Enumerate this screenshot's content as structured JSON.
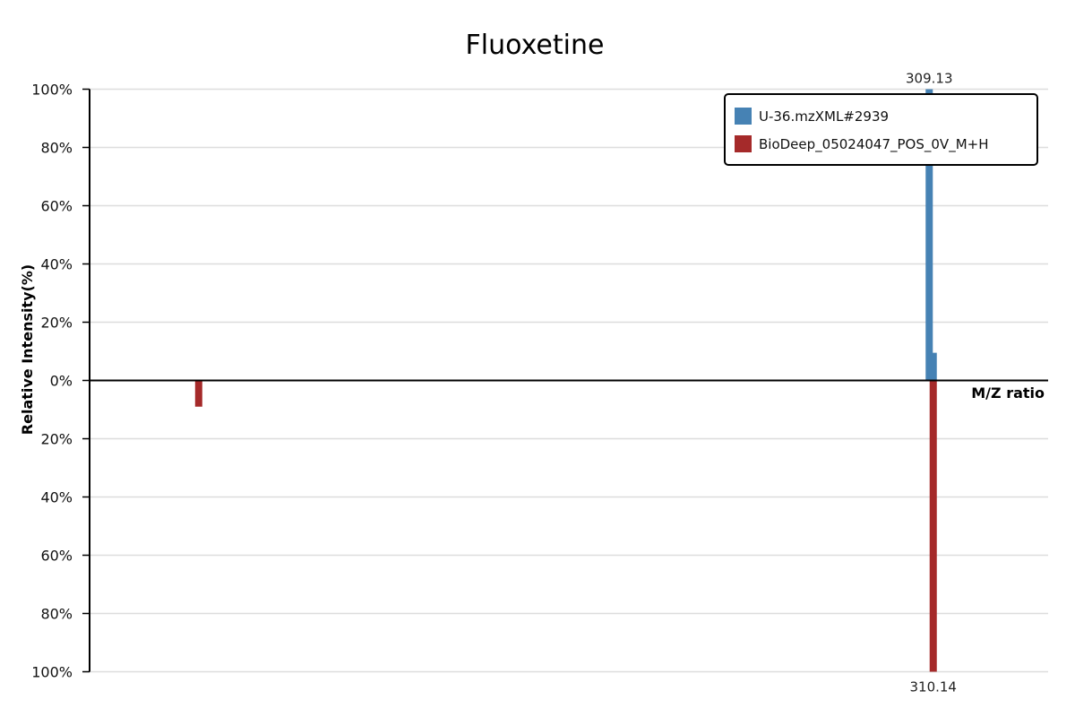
{
  "chart_data": {
    "type": "bar",
    "title": "Fluoxetine",
    "xlabel": "M/Z ratio",
    "ylabel": "Relative Intensity(%)",
    "y_ticks_top": [
      "100%",
      "80%",
      "60%",
      "40%",
      "20%",
      "0%"
    ],
    "y_ticks_bottom": [
      "20%",
      "40%",
      "60%",
      "80%",
      "100%"
    ],
    "ylim": [
      -100,
      100
    ],
    "xlim": [
      97.5,
      339.1
    ],
    "legend_position": "top-right",
    "series": [
      {
        "name": "U-36.mzXML#2939",
        "color": "#4682b4",
        "direction": "up",
        "peaks": [
          {
            "mz": 309.13,
            "intensity": 100,
            "label": "309.13"
          },
          {
            "mz": 310.14,
            "intensity": 9.5,
            "label": ""
          }
        ]
      },
      {
        "name": "BioDeep_05024047_POS_0V_M+H",
        "color": "#a52a2a",
        "direction": "down",
        "peaks": [
          {
            "mz": 125.0,
            "intensity": 9,
            "label": ""
          },
          {
            "mz": 310.14,
            "intensity": 100,
            "label": "310.14"
          }
        ]
      }
    ]
  }
}
